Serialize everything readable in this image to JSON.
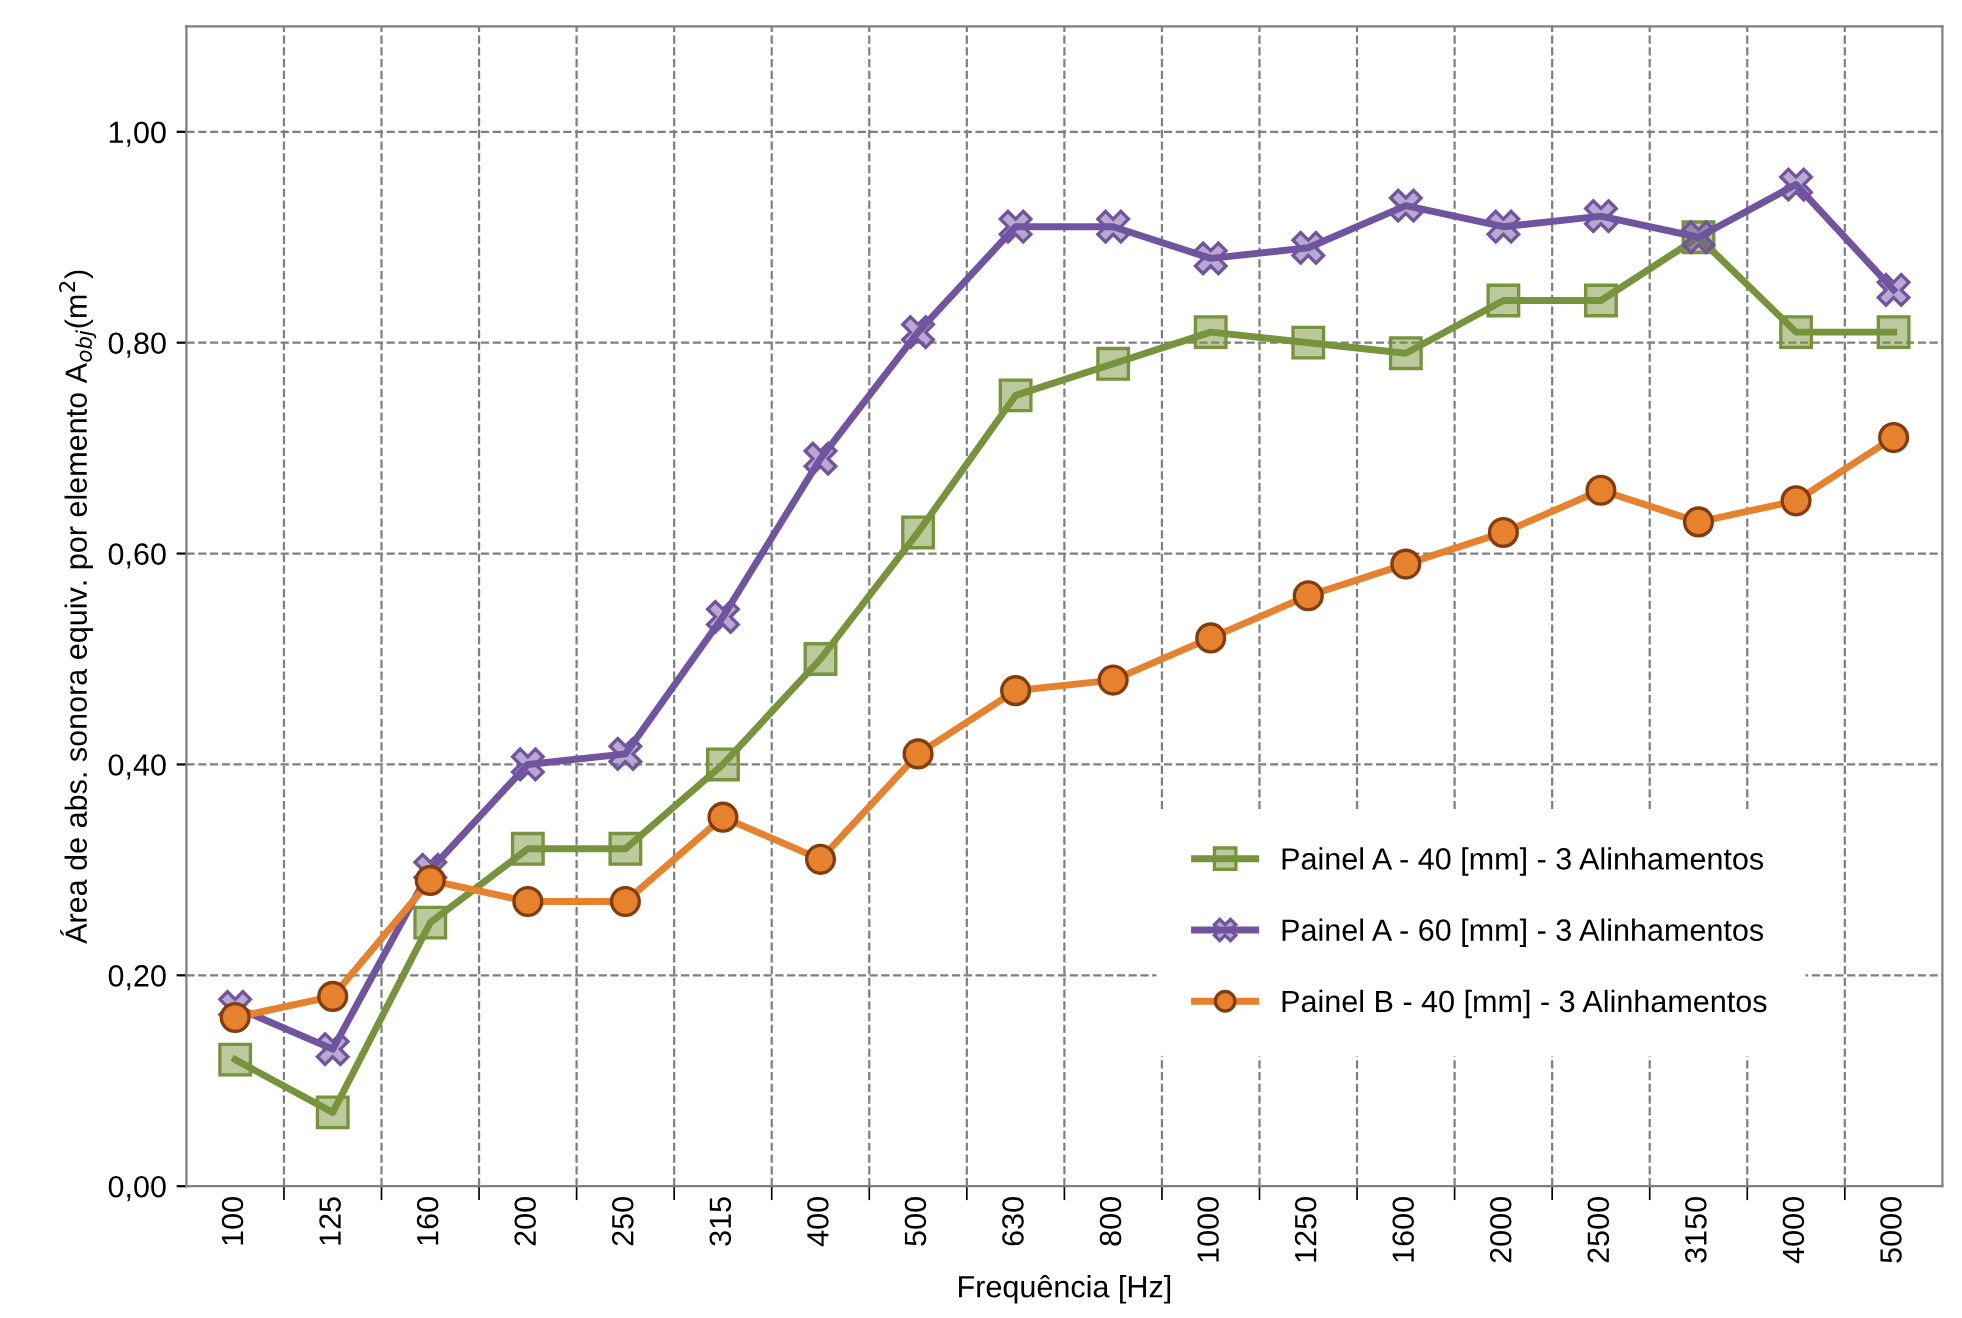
{
  "chart_data": {
    "type": "line",
    "xlabel": "Frequência [Hz]",
    "ylabel": "Área de abs. sonora equiv. por elemento A$_{obj}$(m$^{2}$)",
    "categories": [
      "100",
      "125",
      "160",
      "200",
      "250",
      "315",
      "400",
      "500",
      "630",
      "800",
      "1000",
      "1250",
      "1600",
      "2000",
      "2500",
      "3150",
      "4000",
      "5000"
    ],
    "series": [
      {
        "name": "Painel A - 40 [mm] - 3 Alinhamentos",
        "color": "#77933c",
        "marker": "square",
        "values": [
          0.12,
          0.07,
          0.25,
          0.32,
          0.32,
          0.4,
          0.5,
          0.62,
          0.75,
          0.78,
          0.81,
          0.8,
          0.79,
          0.84,
          0.84,
          0.9,
          0.81,
          0.81
        ]
      },
      {
        "name": "Painel A - 60 [mm] - 3 Alinhamentos",
        "color": "#7054a0",
        "marker": "cross",
        "values": [
          0.17,
          0.13,
          0.3,
          0.4,
          0.41,
          0.54,
          0.69,
          0.81,
          0.91,
          0.91,
          0.88,
          0.89,
          0.93,
          0.91,
          0.92,
          0.9,
          0.95,
          0.85
        ]
      },
      {
        "name": "Painel B - 40 [mm] - 3 Alinhamentos",
        "color": "#e6822e",
        "marker": "circle",
        "values": [
          0.16,
          0.18,
          0.29,
          0.27,
          0.27,
          0.35,
          0.31,
          0.41,
          0.47,
          0.48,
          0.52,
          0.56,
          0.59,
          0.62,
          0.66,
          0.63,
          0.65,
          0.71
        ]
      }
    ],
    "ylim": [
      0,
      1.1
    ],
    "yticks": [
      {
        "value": 0,
        "label": "0,00"
      },
      {
        "value": 0.2,
        "label": "0,20"
      },
      {
        "value": 0.4,
        "label": "0,40"
      },
      {
        "value": 0.6,
        "label": "0,60"
      },
      {
        "value": 0.8,
        "label": "0,80"
      },
      {
        "value": 1.0,
        "label": "1,00"
      }
    ],
    "grid": true,
    "legend": "bottom right",
    "line_style": "solid"
  }
}
